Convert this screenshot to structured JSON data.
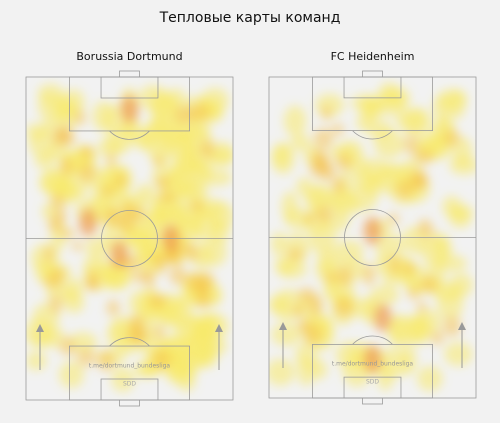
{
  "title": "Тепловые карты команд",
  "panels": [
    {
      "team": "Borussia Dortmund",
      "watermark": "t.me/dortmund_bundesliga",
      "logo": "SDD"
    },
    {
      "team": "FC Heidenheim",
      "watermark": "t.me/dortmund_bundesliga",
      "logo": "SDD"
    }
  ]
}
